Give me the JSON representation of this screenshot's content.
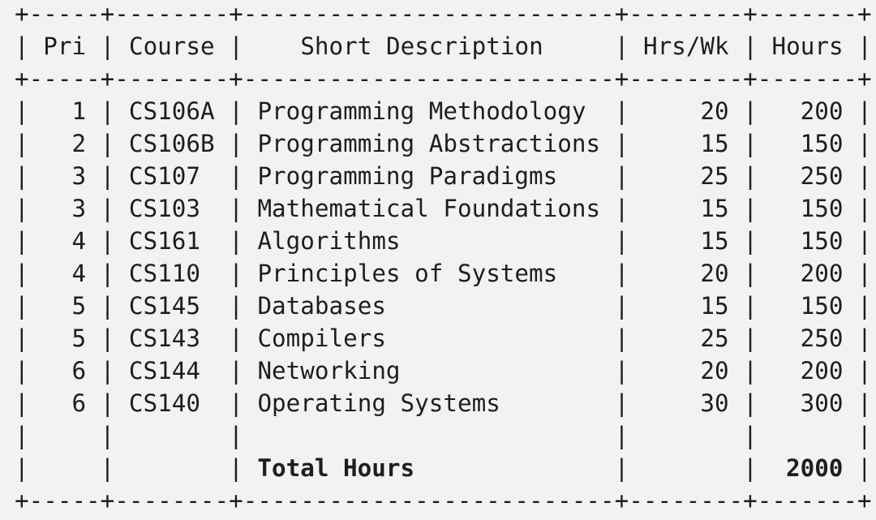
{
  "table": {
    "headers": [
      "Pri",
      "Course",
      "Short Description",
      "Hrs/Wk",
      "Hours"
    ],
    "rows": [
      {
        "pri": "1",
        "course": "CS106A",
        "description": "Programming Methodology",
        "hrs_wk": "20",
        "hours": "200"
      },
      {
        "pri": "2",
        "course": "CS106B",
        "description": "Programming Abstractions",
        "hrs_wk": "15",
        "hours": "150"
      },
      {
        "pri": "3",
        "course": "CS107",
        "description": "Programming Paradigms",
        "hrs_wk": "25",
        "hours": "250"
      },
      {
        "pri": "3",
        "course": "CS103",
        "description": "Mathematical Foundations",
        "hrs_wk": "15",
        "hours": "150"
      },
      {
        "pri": "4",
        "course": "CS161",
        "description": "Algorithms",
        "hrs_wk": "15",
        "hours": "150"
      },
      {
        "pri": "4",
        "course": "CS110",
        "description": "Principles of Systems",
        "hrs_wk": "20",
        "hours": "200"
      },
      {
        "pri": "5",
        "course": "CS145",
        "description": "Databases",
        "hrs_wk": "15",
        "hours": "150"
      },
      {
        "pri": "5",
        "course": "CS143",
        "description": "Compilers",
        "hrs_wk": "25",
        "hours": "250"
      },
      {
        "pri": "6",
        "course": "CS144",
        "description": "Networking",
        "hrs_wk": "20",
        "hours": "200"
      },
      {
        "pri": "6",
        "course": "CS140",
        "description": "Operating Systems",
        "hrs_wk": "30",
        "hours": "300"
      }
    ],
    "total": {
      "label": "Total Hours",
      "value": "2000"
    }
  }
}
